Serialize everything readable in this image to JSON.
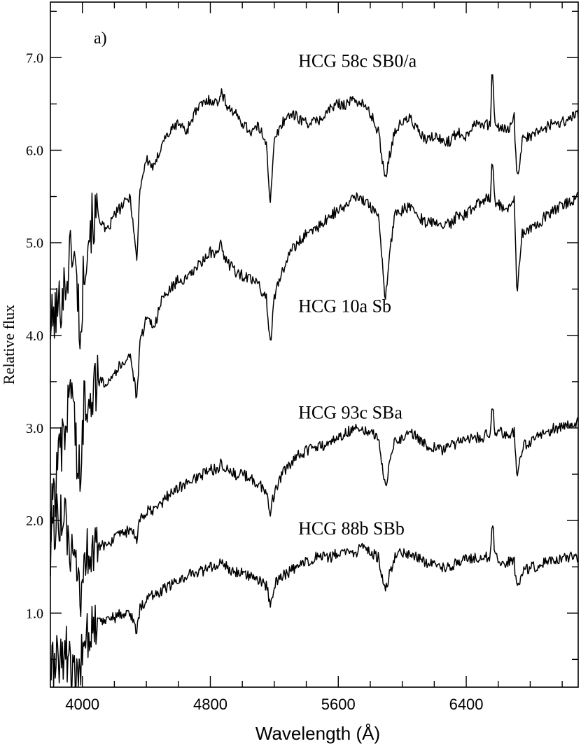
{
  "chart_data": {
    "type": "line",
    "panel_label": "a)",
    "xlabel": "Wavelength (Å)",
    "ylabel": "Relative flux",
    "xlim": [
      3800,
      7100
    ],
    "ylim": [
      0.2,
      7.6
    ],
    "x_ticks": [
      4000,
      4800,
      5600,
      6400
    ],
    "y_ticks": [
      1.0,
      2.0,
      3.0,
      4.0,
      5.0,
      6.0,
      7.0
    ],
    "y_tick_labels": [
      "1.0",
      "2.0",
      "3.0",
      "4.0",
      "5.0",
      "6.0",
      "7.0"
    ],
    "grid": false,
    "series": [
      {
        "name": "HCG 58c SB0/a",
        "x": [
          3800,
          3850,
          3900,
          3935,
          3970,
          3990,
          4010,
          4050,
          4100,
          4150,
          4200,
          4250,
          4300,
          4340,
          4360,
          4400,
          4450,
          4500,
          4550,
          4600,
          4650,
          4700,
          4750,
          4800,
          4850,
          4862,
          4900,
          4950,
          5000,
          5050,
          5100,
          5150,
          5175,
          5200,
          5250,
          5300,
          5350,
          5400,
          5450,
          5500,
          5550,
          5600,
          5650,
          5700,
          5750,
          5800,
          5850,
          5893,
          5950,
          6000,
          6050,
          6100,
          6150,
          6200,
          6250,
          6300,
          6350,
          6400,
          6450,
          6500,
          6550,
          6563,
          6580,
          6620,
          6650,
          6700,
          6717,
          6750,
          6800,
          6850,
          6900,
          6950,
          7000,
          7050,
          7100
        ],
        "y": [
          4.1,
          4.3,
          4.6,
          5.0,
          4.5,
          3.9,
          4.8,
          5.2,
          5.3,
          5.1,
          5.3,
          5.4,
          5.5,
          4.8,
          5.6,
          5.9,
          5.8,
          6.1,
          6.2,
          6.3,
          6.2,
          6.4,
          6.5,
          6.55,
          6.5,
          6.65,
          6.5,
          6.4,
          6.3,
          6.2,
          6.25,
          6.1,
          5.4,
          6.1,
          6.3,
          6.4,
          6.35,
          6.3,
          6.3,
          6.35,
          6.45,
          6.5,
          6.5,
          6.55,
          6.5,
          6.4,
          6.2,
          5.7,
          6.2,
          6.3,
          6.35,
          6.2,
          6.1,
          6.15,
          6.1,
          6.1,
          6.2,
          6.15,
          6.3,
          6.3,
          6.25,
          6.95,
          6.25,
          6.25,
          6.2,
          6.35,
          5.65,
          6.1,
          6.15,
          6.2,
          6.25,
          6.3,
          6.3,
          6.35,
          6.4
        ]
      },
      {
        "name": "HCG 10a Sb",
        "x": [
          3800,
          3850,
          3900,
          3930,
          3970,
          3990,
          4010,
          4050,
          4100,
          4150,
          4200,
          4250,
          4300,
          4340,
          4360,
          4400,
          4450,
          4500,
          4550,
          4600,
          4650,
          4700,
          4750,
          4800,
          4850,
          4862,
          4900,
          4950,
          5000,
          5050,
          5100,
          5150,
          5175,
          5200,
          5250,
          5300,
          5350,
          5400,
          5450,
          5500,
          5550,
          5600,
          5650,
          5700,
          5750,
          5800,
          5850,
          5893,
          5950,
          6000,
          6050,
          6100,
          6150,
          6200,
          6250,
          6300,
          6350,
          6400,
          6450,
          6500,
          6550,
          6563,
          6580,
          6620,
          6650,
          6700,
          6717,
          6750,
          6800,
          6850,
          6900,
          6950,
          7000,
          7050,
          7100
        ],
        "y": [
          2.0,
          2.6,
          3.0,
          3.6,
          2.6,
          2.4,
          3.3,
          3.4,
          3.5,
          3.5,
          3.6,
          3.7,
          3.8,
          3.3,
          3.9,
          4.2,
          4.1,
          4.4,
          4.5,
          4.6,
          4.6,
          4.7,
          4.8,
          4.9,
          4.85,
          5.0,
          4.8,
          4.7,
          4.65,
          4.6,
          4.55,
          4.4,
          3.9,
          4.4,
          4.7,
          4.9,
          5.0,
          5.1,
          5.15,
          5.2,
          5.3,
          5.35,
          5.4,
          5.5,
          5.45,
          5.4,
          5.3,
          4.4,
          5.3,
          5.35,
          5.4,
          5.3,
          5.2,
          5.25,
          5.2,
          5.2,
          5.3,
          5.3,
          5.4,
          5.45,
          5.5,
          5.95,
          5.45,
          5.4,
          5.35,
          5.45,
          4.45,
          5.1,
          5.15,
          5.2,
          5.3,
          5.35,
          5.4,
          5.45,
          5.5
        ]
      },
      {
        "name": "HCG 93c SBa",
        "x": [
          3800,
          3850,
          3900,
          3930,
          3970,
          3990,
          4010,
          4050,
          4100,
          4150,
          4200,
          4250,
          4300,
          4340,
          4360,
          4400,
          4450,
          4500,
          4550,
          4600,
          4650,
          4700,
          4750,
          4800,
          4850,
          4862,
          4900,
          4950,
          5000,
          5050,
          5100,
          5150,
          5175,
          5200,
          5250,
          5300,
          5350,
          5400,
          5450,
          5500,
          5550,
          5600,
          5650,
          5700,
          5750,
          5800,
          5850,
          5893,
          5950,
          6000,
          6050,
          6100,
          6150,
          6200,
          6250,
          6300,
          6350,
          6400,
          6450,
          6500,
          6550,
          6563,
          6580,
          6620,
          6650,
          6700,
          6717,
          6750,
          6800,
          6850,
          6900,
          6950,
          7000,
          7050,
          7100
        ],
        "y": [
          1.7,
          2.1,
          1.9,
          1.6,
          1.3,
          1.1,
          1.6,
          1.7,
          1.7,
          1.75,
          1.8,
          1.85,
          1.9,
          1.8,
          2.0,
          2.1,
          2.1,
          2.2,
          2.3,
          2.35,
          2.4,
          2.45,
          2.5,
          2.55,
          2.55,
          2.65,
          2.55,
          2.5,
          2.5,
          2.45,
          2.4,
          2.3,
          2.1,
          2.3,
          2.5,
          2.6,
          2.7,
          2.75,
          2.8,
          2.8,
          2.85,
          2.9,
          2.95,
          3.0,
          3.0,
          2.95,
          2.9,
          2.35,
          2.85,
          2.9,
          2.95,
          2.9,
          2.8,
          2.8,
          2.75,
          2.8,
          2.85,
          2.85,
          2.9,
          2.9,
          2.95,
          3.3,
          2.95,
          2.95,
          2.9,
          2.95,
          2.45,
          2.8,
          2.85,
          2.9,
          2.95,
          3.0,
          3.0,
          3.05,
          3.05
        ]
      },
      {
        "name": "HCG 88b SBb",
        "x": [
          3800,
          3850,
          3900,
          3930,
          3970,
          3990,
          4010,
          4050,
          4100,
          4150,
          4200,
          4250,
          4300,
          4340,
          4360,
          4400,
          4450,
          4500,
          4550,
          4600,
          4650,
          4700,
          4750,
          4800,
          4850,
          4862,
          4900,
          4950,
          5000,
          5050,
          5100,
          5150,
          5175,
          5200,
          5250,
          5300,
          5350,
          5400,
          5450,
          5500,
          5550,
          5600,
          5650,
          5700,
          5750,
          5800,
          5850,
          5893,
          5950,
          6000,
          6050,
          6100,
          6150,
          6200,
          6250,
          6300,
          6350,
          6400,
          6450,
          6500,
          6550,
          6563,
          6580,
          6620,
          6650,
          6700,
          6717,
          6750,
          6800,
          6850,
          6900,
          6950,
          7000,
          7050,
          7100
        ],
        "y": [
          0.4,
          0.5,
          0.6,
          0.3,
          0.2,
          0.5,
          0.8,
          0.85,
          0.9,
          0.95,
          0.95,
          1.0,
          1.0,
          0.8,
          1.05,
          1.15,
          1.2,
          1.25,
          1.3,
          1.35,
          1.4,
          1.45,
          1.45,
          1.5,
          1.5,
          1.55,
          1.5,
          1.45,
          1.45,
          1.4,
          1.35,
          1.3,
          1.1,
          1.3,
          1.4,
          1.45,
          1.5,
          1.55,
          1.6,
          1.6,
          1.6,
          1.65,
          1.65,
          1.65,
          1.7,
          1.65,
          1.6,
          1.25,
          1.6,
          1.65,
          1.65,
          1.6,
          1.55,
          1.55,
          1.5,
          1.5,
          1.55,
          1.6,
          1.6,
          1.6,
          1.6,
          2.05,
          1.6,
          1.55,
          1.55,
          1.55,
          1.25,
          1.45,
          1.5,
          1.5,
          1.55,
          1.55,
          1.6,
          1.6,
          1.6
        ]
      }
    ],
    "annotations": [
      {
        "text": "HCG 58c SB0/a",
        "x": 5350,
        "y": 6.9
      },
      {
        "text": "HCG 10a Sb",
        "x": 5350,
        "y": 4.25
      },
      {
        "text": "HCG 93c SBa",
        "x": 5350,
        "y": 3.1
      },
      {
        "text": "HCG 88b SBb",
        "x": 5350,
        "y": 1.85
      }
    ]
  }
}
